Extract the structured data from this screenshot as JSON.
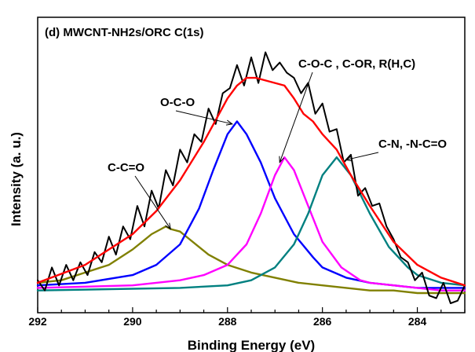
{
  "chart_data": {
    "type": "line",
    "title": "(d) MWCNT-NH2s/ORC C(1s)",
    "xlabel": "Binding Energy (eV)",
    "ylabel": "Intensity (a. u.)",
    "xlim": [
      292,
      283
    ],
    "x_reversed": true,
    "ylim": [
      0,
      100
    ],
    "yticks_shown": false,
    "grid": false,
    "x_ticks": [
      292,
      290,
      288,
      286,
      284
    ],
    "x_tick_labels": [
      "292",
      "290",
      "288",
      "286",
      "284"
    ],
    "series": [
      {
        "color": "#000000",
        "role": "raw data",
        "x": [
          292.0,
          291.85,
          291.7,
          291.55,
          291.4,
          291.25,
          291.1,
          290.95,
          290.8,
          290.65,
          290.5,
          290.35,
          290.2,
          290.05,
          289.9,
          289.75,
          289.6,
          289.45,
          289.3,
          289.15,
          289.0,
          288.85,
          288.7,
          288.55,
          288.4,
          288.25,
          288.1,
          287.95,
          287.8,
          287.65,
          287.5,
          287.35,
          287.2,
          287.05,
          286.9,
          286.75,
          286.6,
          286.45,
          286.3,
          286.15,
          286.0,
          285.85,
          285.7,
          285.55,
          285.4,
          285.25,
          285.1,
          284.95,
          284.8,
          284.65,
          284.5,
          284.35,
          284.2,
          284.05,
          283.9,
          283.75,
          283.6,
          283.45,
          283.3,
          283.15,
          283.0
        ],
        "y": [
          9,
          5,
          14,
          7,
          15,
          9,
          16,
          11,
          20,
          16,
          26,
          19,
          30,
          25,
          38,
          30,
          44,
          37,
          52,
          46,
          60,
          55,
          66,
          63,
          76,
          70,
          82,
          84,
          93,
          85,
          96,
          86,
          98,
          91,
          94,
          90,
          88,
          82,
          86,
          74,
          78,
          67,
          68,
          55,
          58,
          42,
          45,
          38,
          39,
          30,
          25,
          18,
          16,
          9,
          12,
          3,
          2,
          8,
          0,
          1,
          7
        ]
      },
      {
        "color": "#ff0000",
        "role": "fitted envelope",
        "x": [
          292.0,
          291.0,
          290.0,
          289.5,
          289.0,
          288.5,
          288.0,
          287.8,
          287.6,
          287.4,
          287.2,
          287.0,
          286.8,
          286.6,
          286.4,
          286.2,
          286.0,
          285.7,
          285.4,
          285.0,
          284.5,
          284.0,
          283.5,
          283.0
        ],
        "y": [
          8,
          15,
          27,
          36,
          48,
          63,
          80,
          85,
          88,
          88,
          87,
          86,
          85,
          80,
          74,
          71,
          66,
          60,
          50,
          38,
          24,
          15,
          10,
          7
        ]
      },
      {
        "color": "#808000",
        "name": "C-C=O",
        "peak_center": 289.3,
        "peak_height": 30,
        "peak_fwhm": 1.5,
        "x": [
          292.0,
          291.5,
          291.0,
          290.5,
          290.0,
          289.8,
          289.6,
          289.4,
          289.3,
          289.2,
          289.0,
          288.8,
          288.6,
          288.4,
          288.0,
          287.5,
          287.0,
          286.5,
          286.0,
          285.5,
          285.0,
          284.5,
          284.0,
          283.5,
          283.0
        ],
        "y": [
          8,
          9,
          12,
          15,
          21,
          24,
          27,
          29,
          30,
          29,
          28,
          25,
          22,
          19,
          15,
          12,
          10,
          8,
          7,
          6,
          5,
          5,
          4,
          4,
          4
        ]
      },
      {
        "color": "#0000ff",
        "name": "O-C-O",
        "peak_center": 287.8,
        "peak_height": 71,
        "peak_fwhm": 1.5,
        "x": [
          292.0,
          291.0,
          290.0,
          289.5,
          289.0,
          288.6,
          288.3,
          288.0,
          287.8,
          287.6,
          287.3,
          287.0,
          286.6,
          286.2,
          286.0,
          285.5,
          285.0,
          284.5,
          284.0,
          283.5,
          283.0
        ],
        "y": [
          7,
          8,
          11,
          15,
          23,
          37,
          52,
          66,
          71,
          66,
          55,
          41,
          27,
          18,
          14,
          10,
          8,
          7,
          6,
          6,
          6
        ]
      },
      {
        "color": "#ff00ff",
        "name": "C-O-C , C-OR, R(H,C)",
        "peak_center": 286.8,
        "peak_height": 57,
        "peak_fwhm": 1.5,
        "x": [
          292.0,
          290.0,
          289.0,
          288.5,
          288.0,
          287.6,
          287.3,
          287.0,
          286.8,
          286.6,
          286.3,
          286.0,
          285.6,
          285.2,
          285.0,
          284.5,
          284.0,
          283.5,
          283.0
        ],
        "y": [
          6,
          7,
          9,
          11,
          15,
          23,
          35,
          50,
          57,
          52,
          38,
          24,
          14,
          9,
          8,
          7,
          6,
          5,
          5
        ]
      },
      {
        "color": "#008080",
        "name": "C-N, -N-C=O",
        "peak_center": 285.7,
        "peak_height": 57,
        "peak_fwhm": 1.7,
        "x": [
          292.0,
          289.0,
          288.0,
          287.5,
          287.0,
          286.6,
          286.3,
          286.0,
          285.7,
          285.4,
          285.0,
          284.6,
          284.2,
          284.0,
          283.5,
          283.0
        ],
        "y": [
          5,
          6,
          7,
          9,
          14,
          23,
          35,
          50,
          57,
          50,
          35,
          22,
          14,
          11,
          8,
          7
        ]
      }
    ],
    "annotations": [
      {
        "text": "C-C=O",
        "points_to": [
          289.2,
          29
        ]
      },
      {
        "text": "O-C-O",
        "points_to": [
          287.9,
          70
        ]
      },
      {
        "text": "C-O-C , C-OR, R(H,C)",
        "points_to": [
          286.9,
          55
        ]
      },
      {
        "text": "C-N, -N-C=O",
        "points_to": [
          285.5,
          56
        ]
      }
    ]
  }
}
